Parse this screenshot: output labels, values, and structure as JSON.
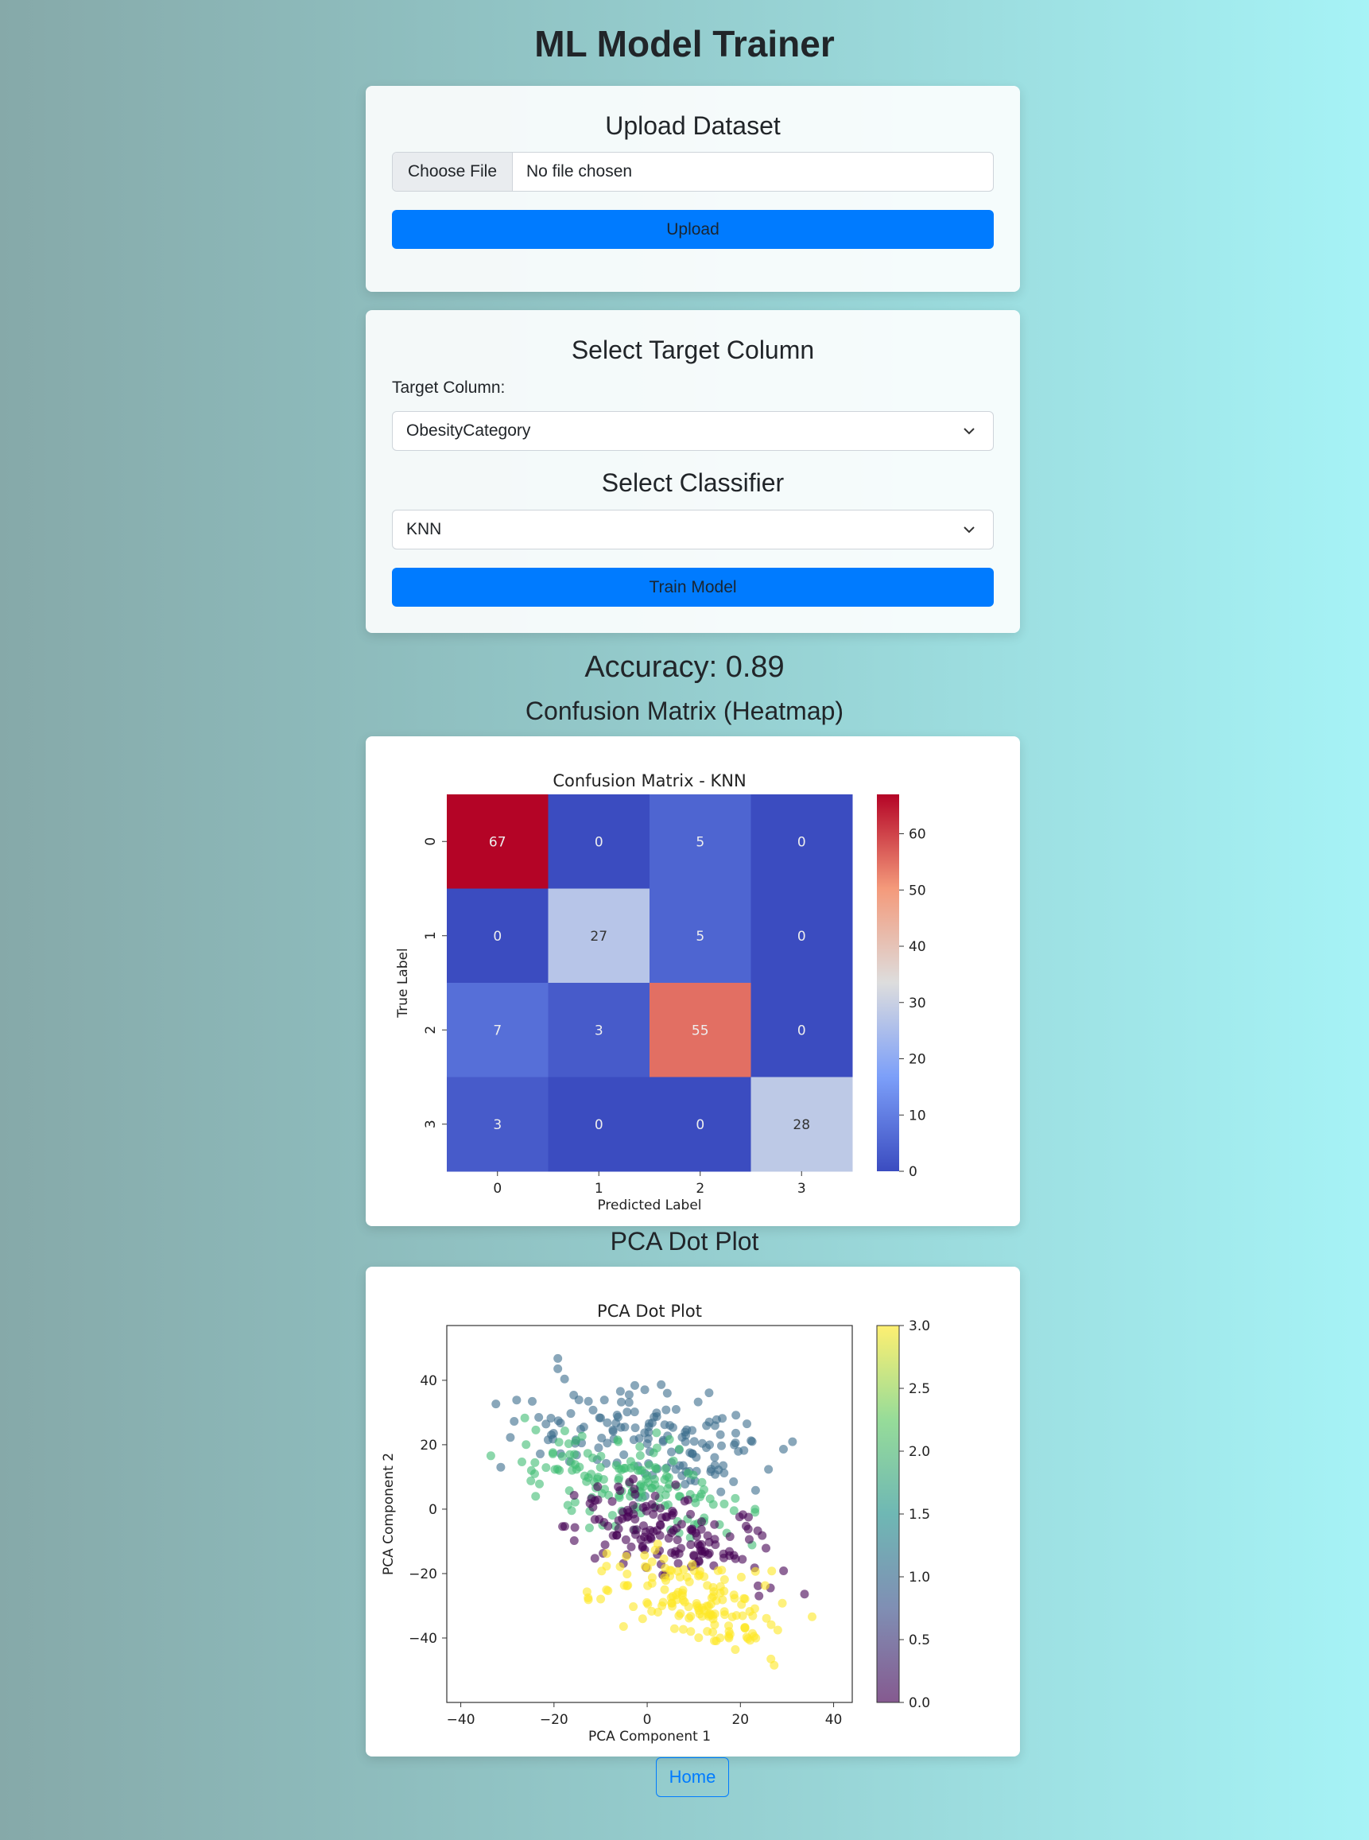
{
  "page_title": "ML Model Trainer",
  "upload": {
    "heading": "Upload Dataset",
    "choose_file_label": "Choose File",
    "file_status": "No file chosen",
    "upload_button": "Upload"
  },
  "target": {
    "heading": "Select Target Column",
    "label": "Target Column:",
    "selected": "ObesityCategory",
    "classifier_heading": "Select Classifier",
    "classifier_selected": "KNN",
    "train_button": "Train Model"
  },
  "results": {
    "accuracy_text": "Accuracy: 0.89",
    "heatmap_heading": "Confusion Matrix (Heatmap)",
    "pca_heading": "PCA Dot Plot"
  },
  "home_button": "Home",
  "chart_data": [
    {
      "type": "heatmap",
      "title": "Confusion Matrix - KNN",
      "xlabel": "Predicted Label",
      "ylabel": "True Label",
      "x_categories": [
        "0",
        "1",
        "2",
        "3"
      ],
      "y_categories": [
        "0",
        "1",
        "2",
        "3"
      ],
      "values": [
        [
          67,
          0,
          5,
          0
        ],
        [
          0,
          27,
          5,
          0
        ],
        [
          7,
          3,
          55,
          0
        ],
        [
          3,
          0,
          0,
          28
        ]
      ],
      "colormap": "coolwarm",
      "colorbar_range": [
        0,
        67
      ],
      "colorbar_ticks": [
        0,
        10,
        20,
        30,
        40,
        50,
        60
      ]
    },
    {
      "type": "scatter",
      "title": "PCA Dot Plot",
      "xlabel": "PCA Component 1",
      "ylabel": "PCA Component 2",
      "xlim": [
        -43,
        44
      ],
      "ylim": [
        -60,
        57
      ],
      "x_ticks": [
        -40,
        -20,
        0,
        20,
        40
      ],
      "y_ticks": [
        -40,
        -20,
        0,
        20,
        40
      ],
      "colormap": "viridis",
      "colorbar_range": [
        0.0,
        3.0
      ],
      "colorbar_ticks": [
        "0.0",
        "0.5",
        "1.0",
        "1.5",
        "2.0",
        "2.5",
        "3.0"
      ],
      "classes": [
        {
          "class": 1,
          "color": "#3b6d8c",
          "approx_center": [
            0,
            22
          ]
        },
        {
          "class": 2,
          "color": "#3fbc73",
          "approx_center": [
            -5,
            8
          ]
        },
        {
          "class": 0,
          "color": "#440154",
          "approx_center": [
            5,
            -8
          ]
        },
        {
          "class": 3,
          "color": "#fde725",
          "approx_center": [
            10,
            -28
          ]
        }
      ]
    }
  ]
}
